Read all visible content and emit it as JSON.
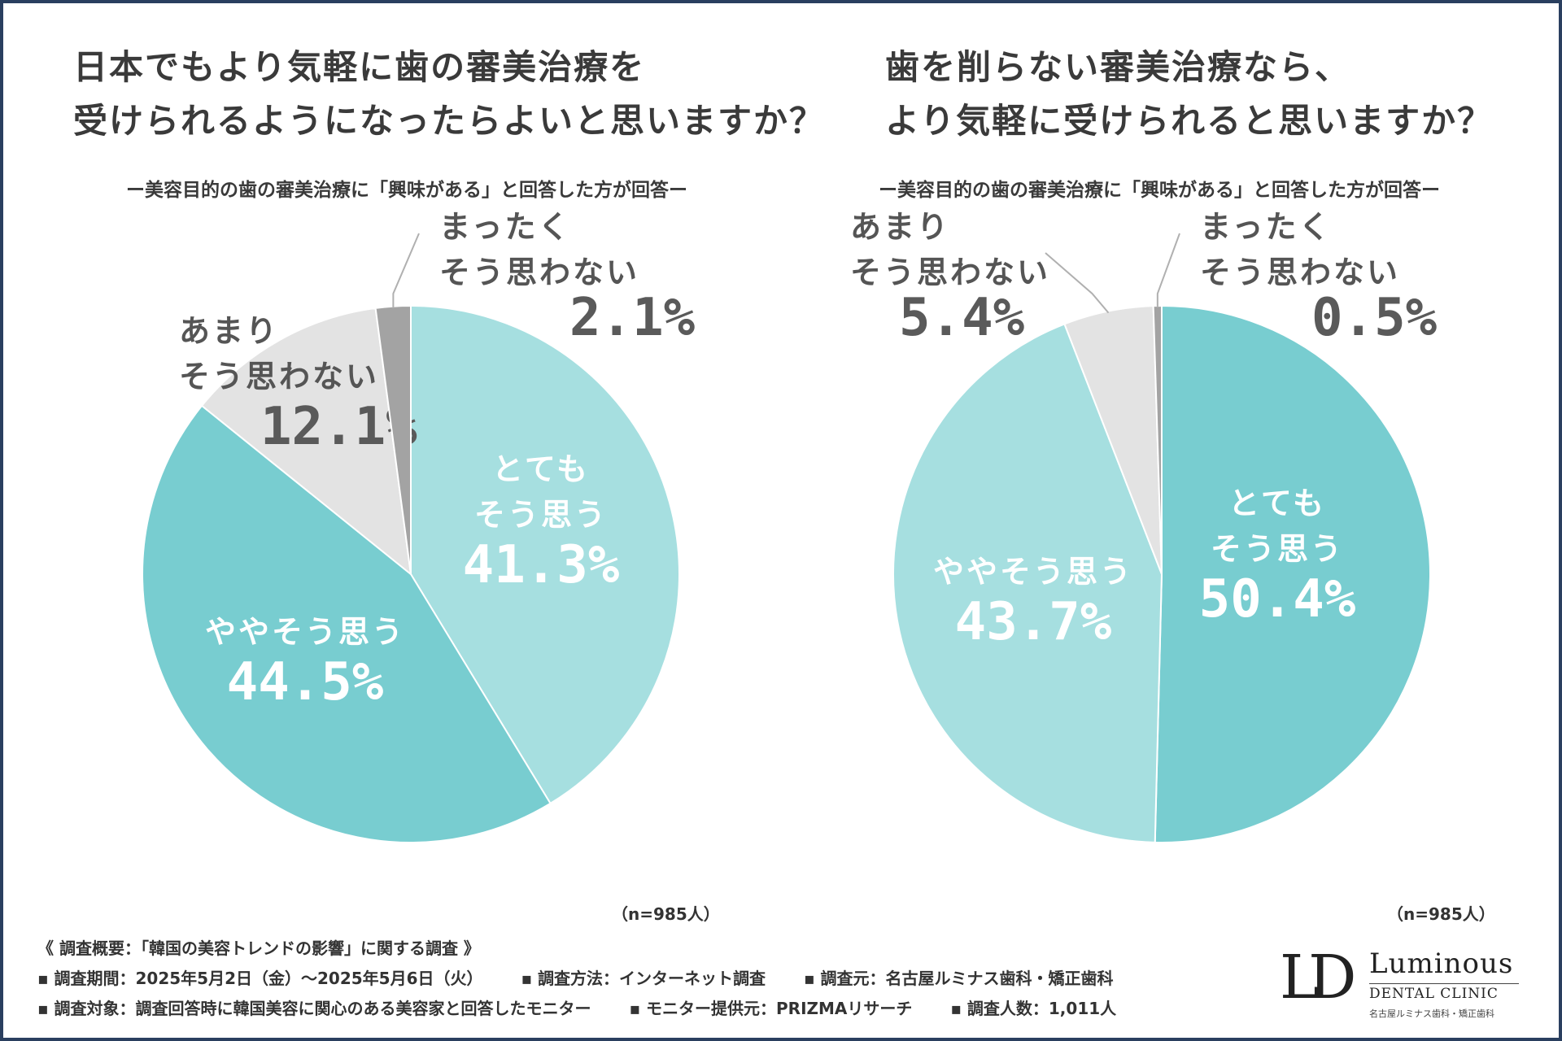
{
  "chart_data": [
    {
      "type": "pie",
      "title": "日本でもより気軽に歯の審美治療を受けられるようになったらよいと思いますか？",
      "title_lines": [
        "日本でもより気軽に歯の審美治療を",
        "受けられるようになったらよいと思いますか？"
      ],
      "subtitle": "ー美容目的の歯の審美治療に「興味がある」と回答した方が回答ー",
      "sample": "（n=985人）",
      "slices": [
        {
          "label_lines": [
            "とても",
            "そう思う"
          ],
          "value": 41.3,
          "value_text": "41.3%",
          "color": "#a6dfe0"
        },
        {
          "label_lines": [
            "ややそう思う"
          ],
          "value": 44.5,
          "value_text": "44.5%",
          "color": "#78cdd0"
        },
        {
          "label_lines": [
            "あまり",
            "そう思わない"
          ],
          "value": 12.1,
          "value_text": "12.1%",
          "color": "#e3e3e3"
        },
        {
          "label_lines": [
            "まったく",
            "そう思わない"
          ],
          "value": 2.1,
          "value_text": "2.1%",
          "color": "#a3a3a3"
        }
      ]
    },
    {
      "type": "pie",
      "title": "歯を削らない審美治療なら、より気軽に受けられると思いますか？",
      "title_lines": [
        "歯を削らない審美治療なら、",
        "より気軽に受けられると思いますか？"
      ],
      "subtitle": "ー美容目的の歯の審美治療に「興味がある」と回答した方が回答ー",
      "sample": "（n=985人）",
      "slices": [
        {
          "label_lines": [
            "とても",
            "そう思う"
          ],
          "value": 50.4,
          "value_text": "50.4%",
          "color": "#78cdd0"
        },
        {
          "label_lines": [
            "ややそう思う"
          ],
          "value": 43.7,
          "value_text": "43.7%",
          "color": "#a6dfe0"
        },
        {
          "label_lines": [
            "あまり",
            "そう思わない"
          ],
          "value": 5.4,
          "value_text": "5.4%",
          "color": "#e3e3e3"
        },
        {
          "label_lines": [
            "まったく",
            "そう思わない"
          ],
          "value": 0.5,
          "value_text": "0.5%",
          "color": "#a3a3a3"
        }
      ]
    }
  ],
  "footer": {
    "heading": "《 調査概要：「韓国の美容トレンドの影響」に関する調査 》",
    "period": "▪ 調査期間：2025年5月2日（金）～2025年5月6日（火）",
    "method": "▪ 調査方法：インターネット調査",
    "source": "▪ 調査元：名古屋ルミナス歯科・矯正歯科",
    "target": "▪ 調査対象：調査回答時に韓国美容に関心のある美容家と回答したモニター",
    "provider": "▪ モニター提供元：PRIZMAリサーチ",
    "count": "▪ 調査人数：1,011人"
  },
  "logo": {
    "mark": "LD",
    "name": "Luminous",
    "sub": "DENTAL CLINIC",
    "sub2": "名古屋ルミナス歯科・矯正歯科"
  },
  "colors": {
    "border": "#2a3f5f",
    "text_dark": "#3a3a3a",
    "label_white": "#ffffff",
    "label_grey": "#555555"
  }
}
